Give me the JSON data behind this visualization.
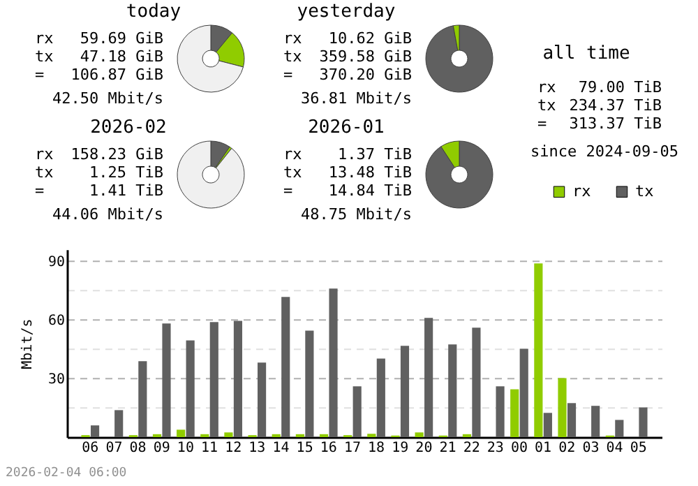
{
  "chart_data": [
    {
      "type": "donut",
      "title": "today",
      "categories": [
        null,
        null,
        null
      ],
      "values": [
        11,
        18,
        71
      ],
      "colors": [
        "#606060",
        "#90cc00",
        "#f0f0f0"
      ],
      "annotations": [
        "rx 59.69 GiB",
        "tx 47.18 GiB",
        "= 106.87 GiB",
        "42.50 Mbit/s"
      ]
    },
    {
      "type": "donut",
      "title": "yesterday",
      "categories": [
        null,
        null
      ],
      "values": [
        97.1,
        2.9
      ],
      "colors": [
        "#606060",
        "#90cc00"
      ],
      "annotations": [
        "rx 10.62 GiB",
        "tx 359.58 GiB",
        "= 370.20 GiB",
        "36.81 Mbit/s"
      ]
    },
    {
      "type": "other",
      "title": "all time",
      "annotations": [
        "rx 79.00 TiB",
        "tx 234.37 TiB",
        "= 313.37 TiB",
        "since 2024-09-05"
      ]
    },
    {
      "type": "donut",
      "title": "2026-02",
      "categories": [
        null,
        null,
        null
      ],
      "values": [
        9.5,
        1.2,
        89.3
      ],
      "colors": [
        "#606060",
        "#90cc00",
        "#f0f0f0"
      ],
      "annotations": [
        "rx 158.23 GiB",
        "tx 1.25 TiB",
        "= 1.41 TiB",
        "44.06 Mbit/s"
      ]
    },
    {
      "type": "donut",
      "title": "2026-01",
      "categories": [
        null,
        null
      ],
      "values": [
        90.8,
        9.2
      ],
      "colors": [
        "#606060",
        "#90cc00"
      ],
      "annotations": [
        "rx 1.37 TiB",
        "tx 13.48 TiB",
        "= 14.84 TiB",
        "48.75 Mbit/s"
      ]
    },
    {
      "type": "bar",
      "ylabel": "Mbit/s",
      "categories": [
        "06",
        "07",
        "08",
        "09",
        "10",
        "11",
        "12",
        "13",
        "14",
        "15",
        "16",
        "17",
        "18",
        "19",
        "20",
        "21",
        "22",
        "23",
        "00",
        "01",
        "02",
        "03",
        "04",
        "05"
      ],
      "series": [
        {
          "name": "rx",
          "color": "#90cc00",
          "values": [
            1,
            0,
            1,
            1.5,
            3.8,
            1.5,
            2.4,
            1,
            1.5,
            1.5,
            1.5,
            1,
            1.7,
            0.8,
            2.4,
            0.8,
            1.5,
            0,
            24.5,
            88.8,
            30.2,
            0,
            0.8,
            0
          ]
        },
        {
          "name": "tx",
          "color": "#606060",
          "values": [
            6,
            13.8,
            38.8,
            58.1,
            49.5,
            58.8,
            59.5,
            38.1,
            71.7,
            54.5,
            76,
            26,
            40.2,
            46.7,
            61,
            47.4,
            56,
            26,
            45.2,
            12.4,
            17.4,
            16,
            8.8,
            15.2
          ]
        }
      ],
      "ylim": [
        0,
        96
      ],
      "yticks": [
        {
          "value": 15,
          "label": null
        },
        30,
        {
          "value": 45,
          "label": null
        },
        60,
        {
          "value": 75,
          "label": null
        },
        90
      ],
      "grid": true,
      "legend": "top right",
      "annotations": [
        "2026-02-04 06:00"
      ]
    }
  ]
}
